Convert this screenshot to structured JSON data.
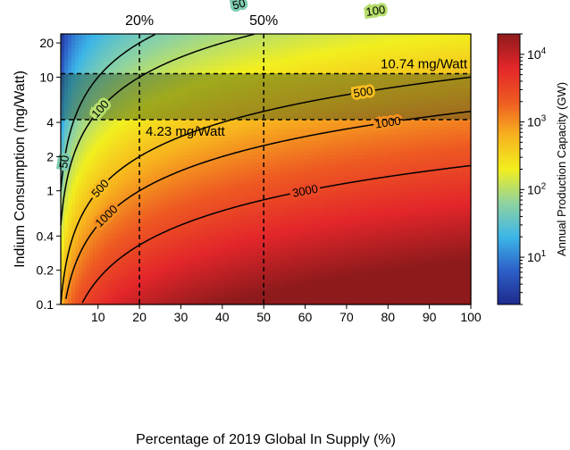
{
  "chart_data": {
    "type": "heatmap",
    "title": "",
    "xlabel": "Percentage of 2019 Global In Supply (%)",
    "ylabel": "Indium Consumption (mg/Watt)",
    "xlim": [
      1,
      100
    ],
    "ylim": [
      0.1,
      24
    ],
    "y_scale": "log",
    "grid": false,
    "x_ticks": [
      "10",
      "20",
      "30",
      "40",
      "50",
      "60",
      "70",
      "80",
      "90",
      "100"
    ],
    "x_tick_values": [
      10,
      20,
      30,
      40,
      50,
      60,
      70,
      80,
      90,
      100
    ],
    "y_ticks": [
      "0.1",
      "0.2",
      "0.4",
      "1",
      "2",
      "4",
      "10",
      "20"
    ],
    "y_tick_values": [
      0.1,
      0.2,
      0.4,
      1,
      2,
      4,
      10,
      20
    ],
    "colorbar": {
      "label": "Annual Production Capacity (GW)",
      "scale": "log",
      "range": [
        2,
        20000
      ],
      "ticks": [
        {
          "value": 10,
          "base": "10",
          "exp": "1"
        },
        {
          "value": 100,
          "base": "10",
          "exp": "2"
        },
        {
          "value": 1000,
          "base": "10",
          "exp": "3"
        },
        {
          "value": 10000,
          "base": "10",
          "exp": "4"
        }
      ],
      "colormap": [
        "#1e2a8c",
        "#2d5fc8",
        "#3cb6e8",
        "#8fd3a0",
        "#f2ef1e",
        "#f7b21e",
        "#ee5a22",
        "#e3262a",
        "#8e1a1c"
      ]
    },
    "contour_constant_gw_per_pct_per_mg_w": 50,
    "contours": [
      {
        "level": 50,
        "label": "50",
        "label_points": [
          {
            "x": 44,
            "y": 19.5
          },
          {
            "x": 1.8,
            "y": 0.55
          }
        ]
      },
      {
        "level": 100,
        "label": "100",
        "label_points": [
          {
            "x": 77,
            "y": 15.5
          },
          {
            "x": 10.5,
            "y": 1.6
          }
        ]
      },
      {
        "level": 500,
        "label": "500",
        "label_points": [
          {
            "x": 74,
            "y": 3.0
          },
          {
            "x": 10.5,
            "y": 0.4
          }
        ]
      },
      {
        "level": 1000,
        "label": "1000",
        "label_points": [
          {
            "x": 80,
            "y": 1.65
          },
          {
            "x": 12,
            "y": 0.22
          }
        ]
      },
      {
        "level": 3000,
        "label": "3000",
        "label_points": [
          {
            "x": 60,
            "y": 0.42
          }
        ]
      }
    ],
    "vertical_lines": [
      {
        "x": 20,
        "label": "20%"
      },
      {
        "x": 50,
        "label": "50%"
      }
    ],
    "horizontal_lines": [
      {
        "y": 10.74,
        "label": "10.74 mg/Watt"
      },
      {
        "y": 4.23,
        "label": "4.23 mg/Watt"
      }
    ],
    "shaded_band": {
      "y_range": [
        4.23,
        10.74
      ]
    }
  }
}
